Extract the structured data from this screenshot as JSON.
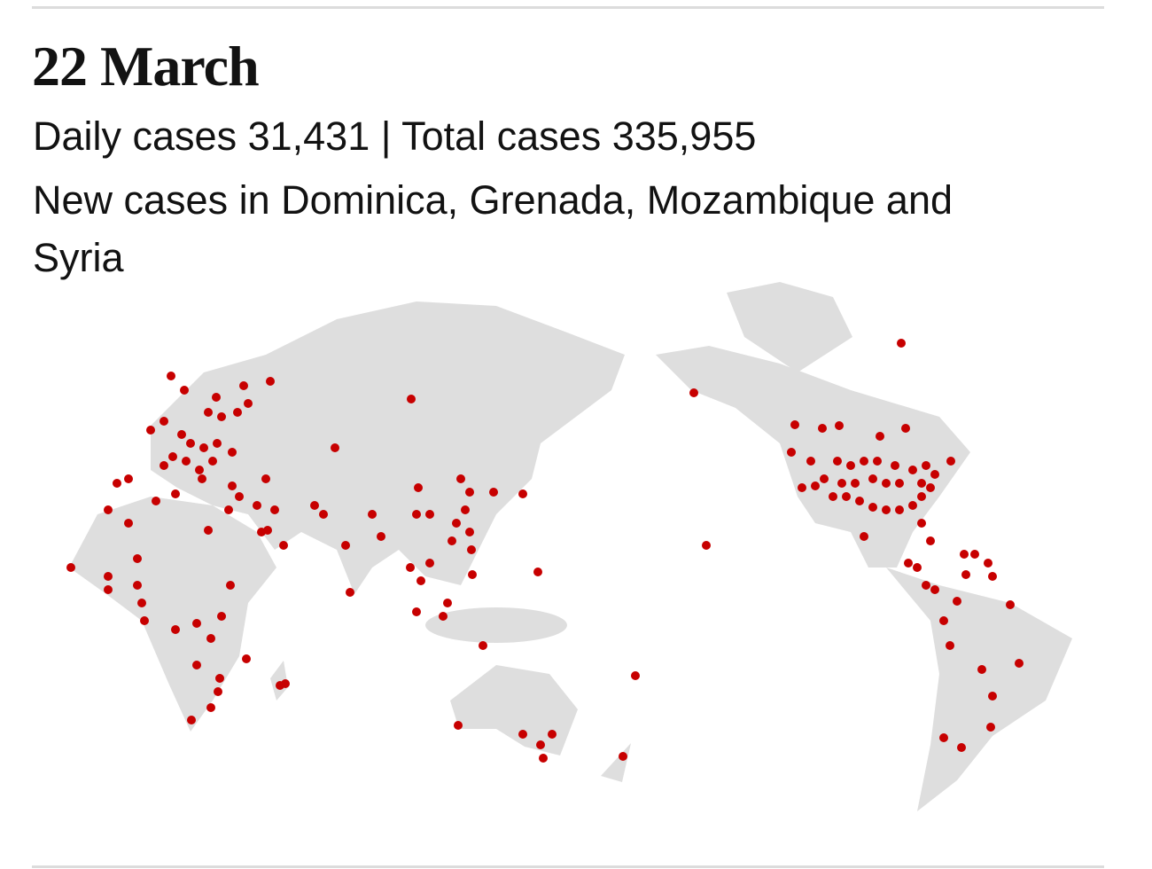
{
  "header": {
    "title": "22 March",
    "stats": "Daily cases 31,431 | Total cases 335,955",
    "note": "New cases in Dominica, Grenada, Mozambique and Syria"
  }
}
